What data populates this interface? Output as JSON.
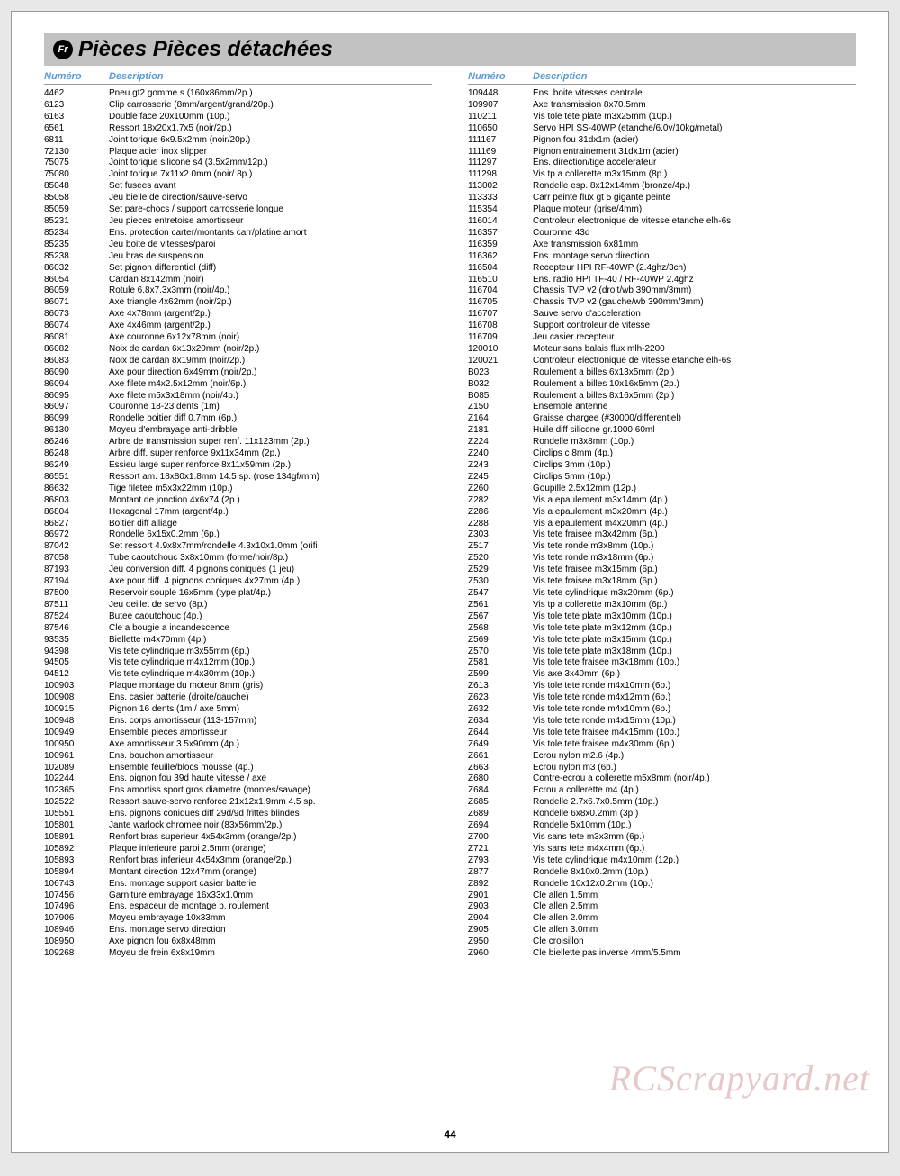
{
  "lang_badge": "Fr",
  "title": "Pièces Pièces détachées",
  "col_headers": {
    "num": "Numéro",
    "desc": "Description"
  },
  "page_number": "44",
  "watermark": "RCScrapyard.net",
  "left": [
    {
      "n": "4462",
      "d": "Pneu gt2 gomme s (160x86mm/2p.)"
    },
    {
      "n": "6123",
      "d": "Clip carrosserie (8mm/argent/grand/20p.)"
    },
    {
      "n": "6163",
      "d": "Double face 20x100mm (10p.)"
    },
    {
      "n": "6561",
      "d": "Ressort 18x20x1.7x5 (noir/2p.)"
    },
    {
      "n": "6811",
      "d": "Joint torique 6x9.5x2mm (noir/20p.)"
    },
    {
      "n": "72130",
      "d": "Plaque acier inox slipper"
    },
    {
      "n": "75075",
      "d": "Joint torique silicone s4 (3.5x2mm/12p.)"
    },
    {
      "n": "75080",
      "d": "Joint torique 7x11x2.0mm (noir/ 8p.)"
    },
    {
      "n": "85048",
      "d": "Set fusees avant"
    },
    {
      "n": "85058",
      "d": "Jeu bielle de direction/sauve-servo"
    },
    {
      "n": "85059",
      "d": "Set pare-chocs / support carrosserie longue"
    },
    {
      "n": "85231",
      "d": "Jeu pieces entretoise amortisseur"
    },
    {
      "n": "85234",
      "d": "Ens. protection carter/montants carr/platine amort"
    },
    {
      "n": "85235",
      "d": "Jeu boite de vitesses/paroi"
    },
    {
      "n": "85238",
      "d": "Jeu bras de suspension"
    },
    {
      "n": "86032",
      "d": "Set pignon differentiel (diff)"
    },
    {
      "n": "86054",
      "d": "Cardan 8x142mm (noir)"
    },
    {
      "n": "86059",
      "d": "Rotule 6.8x7.3x3mm (noir/4p.)"
    },
    {
      "n": "86071",
      "d": "Axe triangle 4x62mm (noir/2p.)"
    },
    {
      "n": "86073",
      "d": "Axe 4x78mm (argent/2p.)"
    },
    {
      "n": "86074",
      "d": "Axe 4x46mm (argent/2p.)"
    },
    {
      "n": "86081",
      "d": "Axe couronne 6x12x78mm (noir)"
    },
    {
      "n": "86082",
      "d": "Noix de cardan 6x13x20mm (noir/2p.)"
    },
    {
      "n": "86083",
      "d": "Noix de cardan 8x19mm (noir/2p.)"
    },
    {
      "n": "86090",
      "d": "Axe pour direction 6x49mm (noir/2p.)"
    },
    {
      "n": "86094",
      "d": "Axe filete m4x2.5x12mm (noir/6p.)"
    },
    {
      "n": "86095",
      "d": "Axe filete m5x3x18mm (noir/4p.)"
    },
    {
      "n": "86097",
      "d": "Couronne 18-23 dents (1m)"
    },
    {
      "n": "86099",
      "d": "Rondelle boitier diff 0.7mm (6p.)"
    },
    {
      "n": "86130",
      "d": "Moyeu d'embrayage anti-dribble"
    },
    {
      "n": "86246",
      "d": "Arbre de transmission super renf. 11x123mm (2p.)"
    },
    {
      "n": "86248",
      "d": "Arbre diff. super renforce 9x11x34mm (2p.)"
    },
    {
      "n": "86249",
      "d": "Essieu large super renforce 8x11x59mm (2p.)"
    },
    {
      "n": "86551",
      "d": "Ressort am. 18x80x1.8mm 14.5 sp. (rose 134gf/mm)"
    },
    {
      "n": "86632",
      "d": "Tige filetee m5x3x22mm (10p.)"
    },
    {
      "n": "86803",
      "d": "Montant de jonction 4x6x74  (2p.)"
    },
    {
      "n": "86804",
      "d": "Hexagonal 17mm (argent/4p.)"
    },
    {
      "n": "86827",
      "d": "Boitier diff alliage"
    },
    {
      "n": "86972",
      "d": "Rondelle 6x15x0.2mm (6p.)"
    },
    {
      "n": "87042",
      "d": "Set ressort 4.9x8x7mm/rondelle 4.3x10x1.0mm (orifi"
    },
    {
      "n": "87058",
      "d": "Tube caoutchouc 3x8x10mm (forme/noir/8p.)"
    },
    {
      "n": "87193",
      "d": "Jeu conversion diff. 4 pignons coniques (1 jeu)"
    },
    {
      "n": "87194",
      "d": "Axe pour diff. 4 pignons coniques 4x27mm (4p.)"
    },
    {
      "n": "87500",
      "d": "Reservoir souple 16x5mm (type plat/4p.)"
    },
    {
      "n": "87511",
      "d": "Jeu oeillet de servo (8p.)"
    },
    {
      "n": "87524",
      "d": "Butee caoutchouc (4p.)"
    },
    {
      "n": "87546",
      "d": "Cle a bougie a incandescence"
    },
    {
      "n": "93535",
      "d": "Biellette m4x70mm (4p.)"
    },
    {
      "n": "94398",
      "d": "Vis tete cylindrique m3x55mm (6p.)"
    },
    {
      "n": "94505",
      "d": "Vis tete cylindrique m4x12mm (10p.)"
    },
    {
      "n": "94512",
      "d": "Vis tete cylindrique m4x30mm (10p.)"
    },
    {
      "n": "100903",
      "d": "Plaque montage du moteur 8mm (gris)"
    },
    {
      "n": "100908",
      "d": "Ens. casier batterie (droite/gauche)"
    },
    {
      "n": "100915",
      "d": "Pignon 16 dents (1m / axe 5mm)"
    },
    {
      "n": "100948",
      "d": "Ens. corps amortisseur (113-157mm)"
    },
    {
      "n": "100949",
      "d": "Ensemble pieces amortisseur"
    },
    {
      "n": "100950",
      "d": "Axe amortisseur 3.5x90mm (4p.)"
    },
    {
      "n": "100961",
      "d": "Ens. bouchon amortisseur"
    },
    {
      "n": "102089",
      "d": "Ensemble feuille/blocs mousse (4p.)"
    },
    {
      "n": "102244",
      "d": "Ens. pignon fou 39d haute vitesse / axe"
    },
    {
      "n": "102365",
      "d": "Ens amortiss sport gros diametre (montes/savage)"
    },
    {
      "n": "102522",
      "d": "Ressort sauve-servo renforce 21x12x1.9mm 4.5 sp."
    },
    {
      "n": "105551",
      "d": "Ens. pignons coniques diff 29d/9d frittes blindes"
    },
    {
      "n": "105801",
      "d": "Jante warlock chromee noir (83x56mm/2p.)"
    },
    {
      "n": "105891",
      "d": "Renfort bras superieur 4x54x3mm (orange/2p.)"
    },
    {
      "n": "105892",
      "d": "Plaque inferieure paroi 2.5mm (orange)"
    },
    {
      "n": "105893",
      "d": "Renfort bras inferieur 4x54x3mm (orange/2p.)"
    },
    {
      "n": "105894",
      "d": "Montant direction 12x47mm (orange)"
    },
    {
      "n": "106743",
      "d": "Ens. montage support casier batterie"
    },
    {
      "n": "107456",
      "d": "Garniture embrayage 16x33x1.0mm"
    },
    {
      "n": "107496",
      "d": "Ens. espaceur de montage p. roulement"
    },
    {
      "n": "107906",
      "d": "Moyeu embrayage 10x33mm"
    },
    {
      "n": "108946",
      "d": "Ens. montage servo direction"
    },
    {
      "n": "108950",
      "d": "Axe pignon fou 6x8x48mm"
    },
    {
      "n": "109268",
      "d": "Moyeu de frein 6x8x19mm"
    }
  ],
  "right": [
    {
      "n": "109448",
      "d": "Ens. boite vitesses centrale"
    },
    {
      "n": "109907",
      "d": "Axe transmission 8x70.5mm"
    },
    {
      "n": "110211",
      "d": "Vis tole tete plate m3x25mm (10p.)"
    },
    {
      "n": "110650",
      "d": "Servo HPI SS-40WP (etanche/6.0v/10kg/metal)"
    },
    {
      "n": "111167",
      "d": "Pignon fou 31dx1m (acier)"
    },
    {
      "n": "111169",
      "d": "Pignon entrainement 31dx1m (acier)"
    },
    {
      "n": "111297",
      "d": "Ens. direction/tige accelerateur"
    },
    {
      "n": "111298",
      "d": "Vis tp a collerette m3x15mm (8p.)"
    },
    {
      "n": "113002",
      "d": "Rondelle esp. 8x12x14mm (bronze/4p.)"
    },
    {
      "n": "113333",
      "d": "Carr peinte flux gt 5 gigante peinte"
    },
    {
      "n": "115354",
      "d": "Plaque moteur (grise/4mm)"
    },
    {
      "n": "116014",
      "d": "Controleur electronique de vitesse etanche elh-6s"
    },
    {
      "n": "116357",
      "d": "Couronne 43d"
    },
    {
      "n": "116359",
      "d": "Axe transmission 6x81mm"
    },
    {
      "n": "116362",
      "d": "Ens. montage servo direction"
    },
    {
      "n": "116504",
      "d": "Recepteur HPI RF-40WP (2.4ghz/3ch)"
    },
    {
      "n": "116510",
      "d": "Ens. radio HPI TF-40 / RF-40WP 2.4ghz"
    },
    {
      "n": "116704",
      "d": "Chassis TVP v2 (droit/wb 390mm/3mm)"
    },
    {
      "n": "116705",
      "d": "Chassis TVP v2 (gauche/wb 390mm/3mm)"
    },
    {
      "n": "116707",
      "d": "Sauve servo d'acceleration"
    },
    {
      "n": "116708",
      "d": "Support controleur de vitesse"
    },
    {
      "n": "116709",
      "d": "Jeu casier recepteur"
    },
    {
      "n": "120010",
      "d": "Moteur sans balais flux mlh-2200"
    },
    {
      "n": "120021",
      "d": "Controleur electronique de vitesse etanche elh-6s"
    },
    {
      "n": "B023",
      "d": "Roulement a billes 6x13x5mm (2p.)"
    },
    {
      "n": "B032",
      "d": "Roulement a billes 10x16x5mm (2p.)"
    },
    {
      "n": "B085",
      "d": "Roulement a billes 8x16x5mm (2p.)"
    },
    {
      "n": "Z150",
      "d": "Ensemble antenne"
    },
    {
      "n": "Z164",
      "d": "Graisse chargee (#30000/differentiel)"
    },
    {
      "n": "Z181",
      "d": "Huile diff silicone gr.1000 60ml"
    },
    {
      "n": "Z224",
      "d": "Rondelle m3x8mm (10p.)"
    },
    {
      "n": "Z240",
      "d": "Circlips c 8mm (4p.)"
    },
    {
      "n": "Z243",
      "d": "Circlips 3mm (10p.)"
    },
    {
      "n": "Z245",
      "d": "Circlips 5mm (10p.)"
    },
    {
      "n": "Z260",
      "d": "Goupille 2.5x12mm (12p.)"
    },
    {
      "n": "Z282",
      "d": "Vis a epaulement m3x14mm (4p.)"
    },
    {
      "n": "Z286",
      "d": "Vis a epaulement m3x20mm (4p.)"
    },
    {
      "n": "Z288",
      "d": "Vis a epaulement m4x20mm (4p.)"
    },
    {
      "n": "Z303",
      "d": "Vis tete fraisee m3x42mm (6p.)"
    },
    {
      "n": "Z517",
      "d": "Vis tete ronde m3x8mm (10p.)"
    },
    {
      "n": "Z520",
      "d": "Vis tete ronde m3x18mm (6p.)"
    },
    {
      "n": "Z529",
      "d": "Vis tete fraisee m3x15mm (6p.)"
    },
    {
      "n": "Z530",
      "d": "Vis tete fraisee m3x18mm (6p.)"
    },
    {
      "n": "Z547",
      "d": "Vis tete cylindrique m3x20mm (6p.)"
    },
    {
      "n": "Z561",
      "d": "Vis tp a collerette m3x10mm (6p.)"
    },
    {
      "n": "Z567",
      "d": "Vis tole tete plate m3x10mm (10p.)"
    },
    {
      "n": "Z568",
      "d": "Vis tole tete plate m3x12mm (10p.)"
    },
    {
      "n": "Z569",
      "d": "Vis tole tete plate m3x15mm (10p.)"
    },
    {
      "n": "Z570",
      "d": "Vis tole tete plate m3x18mm (10p.)"
    },
    {
      "n": "Z581",
      "d": "Vis tole tete fraisee m3x18mm (10p.)"
    },
    {
      "n": "Z599",
      "d": "Vis axe 3x40mm (6p.)"
    },
    {
      "n": "Z613",
      "d": "Vis tole tete ronde m4x10mm (6p.)"
    },
    {
      "n": "Z623",
      "d": "Vis tole tete ronde m4x12mm (6p.)"
    },
    {
      "n": "Z632",
      "d": "Vis tole tete ronde m4x10mm (6p.)"
    },
    {
      "n": "Z634",
      "d": "Vis tole tete ronde m4x15mm (10p.)"
    },
    {
      "n": "Z644",
      "d": "Vis tole tete fraisee m4x15mm (10p.)"
    },
    {
      "n": "Z649",
      "d": "Vis tole tete fraisee m4x30mm (6p.)"
    },
    {
      "n": "Z661",
      "d": "Ecrou nylon m2.6 (4p.)"
    },
    {
      "n": "Z663",
      "d": "Ecrou nylon m3 (6p.)"
    },
    {
      "n": "Z680",
      "d": "Contre-ecrou a collerette m5x8mm (noir/4p.)"
    },
    {
      "n": "Z684",
      "d": "Ecrou a collerette m4 (4p.)"
    },
    {
      "n": "Z685",
      "d": "Rondelle 2.7x6.7x0.5mm (10p.)"
    },
    {
      "n": "Z689",
      "d": "Rondelle 6x8x0.2mm (3p.)"
    },
    {
      "n": "Z694",
      "d": "Rondelle 5x10mm (10p.)"
    },
    {
      "n": "Z700",
      "d": "Vis sans tete m3x3mm (6p.)"
    },
    {
      "n": "Z721",
      "d": "Vis sans tete m4x4mm (6p.)"
    },
    {
      "n": "Z793",
      "d": "Vis tete cylindrique m4x10mm (12p.)"
    },
    {
      "n": "Z877",
      "d": "Rondelle 8x10x0.2mm (10p.)"
    },
    {
      "n": "Z892",
      "d": "Rondelle 10x12x0.2mm (10p.)"
    },
    {
      "n": "Z901",
      "d": "Cle allen 1.5mm"
    },
    {
      "n": "Z903",
      "d": "Cle allen 2.5mm"
    },
    {
      "n": "Z904",
      "d": "Cle allen 2.0mm"
    },
    {
      "n": "Z905",
      "d": "Cle allen 3.0mm"
    },
    {
      "n": "Z950",
      "d": "Cle croisillon"
    },
    {
      "n": "Z960",
      "d": "Cle biellette pas inverse 4mm/5.5mm"
    }
  ]
}
